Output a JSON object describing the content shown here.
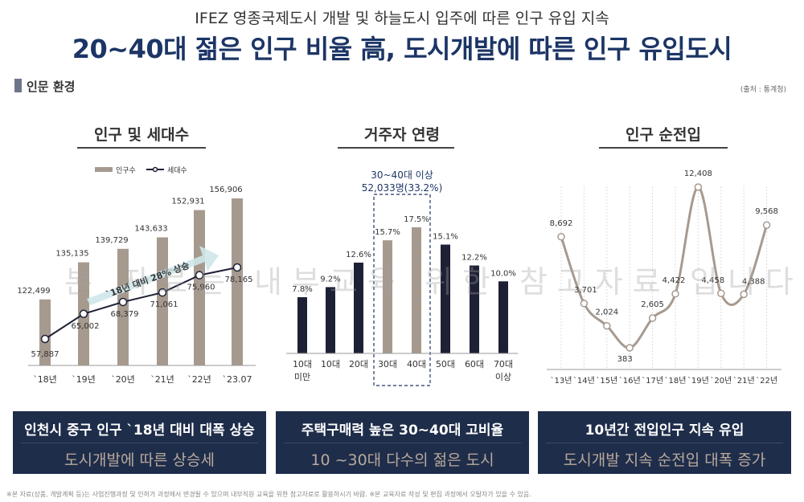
{
  "header": {
    "subtitle": "IFEZ 영종국제도시 개발 및 하늘도시 입주에 따른 인구 유입 지속",
    "title": "20~40대 젊은 인구 비율 高, 도시개발에 따른 인구 유입도시"
  },
  "section": {
    "label": "인문 환경",
    "source": "(출처 : 통계청)"
  },
  "panels": [
    {
      "title": "인구 및 세대수"
    },
    {
      "title": "거주자 연령"
    },
    {
      "title": "인구 순전입"
    }
  ],
  "summaries": [
    {
      "line1": "인천시 중구 인구 `18년 대비 대폭 상승",
      "line2": "도시개발에 따른 상승세"
    },
    {
      "line1": "주택구매력 높은 30~40대 고비율",
      "line2": "10 ~30대 다수의 젊은 도시"
    },
    {
      "line1": "10년간 전입인구 지속 유입",
      "line2": "도시개발 지속 순전입 대폭 증가"
    }
  ],
  "watermark": "본 자료는 내부교육 위한 참고자료 입니다",
  "footer": "※본 자료(상품, 개발계획 등)는 사업진행과정 및 인허가 과정에서 변경될 수 있으며 내부직원 교육을 위한 참고자료로 활용하시기 바람. ※본 교육자료 작성 및 편집 과정에서 오탈자가 있을 수 있음.",
  "colors": {
    "navy": "#1e2d4a",
    "taupe": "#a69a8f",
    "dark_bar": "#1e2035",
    "title_blue": "#1c3566"
  },
  "chart_data": [
    {
      "type": "bar",
      "categories": [
        "`18년",
        "`19년",
        "`20년",
        "`21년",
        "`22년",
        "`23.07"
      ],
      "series": [
        {
          "name": "인구수",
          "type": "bar",
          "values": [
            122499,
            135135,
            139729,
            143633,
            152931,
            156906
          ],
          "labels": [
            "122,499",
            "135,135",
            "139,729",
            "143,633",
            "152,931",
            "156,906"
          ]
        },
        {
          "name": "세대수",
          "type": "line",
          "values": [
            57887,
            65002,
            68379,
            71061,
            75960,
            78165
          ],
          "labels": [
            "57,887",
            "65,002",
            "68,379",
            "71,061",
            "75,960",
            "78,165"
          ]
        }
      ],
      "annotation": "`18년 대비 28% 상승",
      "legend": "top-left"
    },
    {
      "type": "bar",
      "categories": [
        "10대\n미만",
        "10대",
        "20대",
        "30대",
        "40대",
        "50대",
        "60대",
        "70대\n이상"
      ],
      "values": [
        7.8,
        9.2,
        12.6,
        15.7,
        17.5,
        15.1,
        12.2,
        10.0
      ],
      "labels": [
        "7.8%",
        "9.2%",
        "12.6%",
        "15.7%",
        "17.5%",
        "15.1%",
        "12.2%",
        "10.0%"
      ],
      "highlight": [
        "30대",
        "40대"
      ],
      "annotation": {
        "line1": "30~40대 이상",
        "line2": "52,033명(33.2%)"
      }
    },
    {
      "type": "line",
      "categories": [
        "`13년",
        "`14년",
        "`15년",
        "`16년",
        "`17년",
        "`18년",
        "`19년",
        "`20년",
        "`21년",
        "`22년"
      ],
      "values": [
        8692,
        3701,
        2024,
        383,
        2605,
        4422,
        12408,
        4458,
        4388,
        9568
      ],
      "labels": [
        "8,692",
        "3,701",
        "2,024",
        "383",
        "2,605",
        "4,422",
        "12,408",
        "4,458",
        "4,388",
        "9,568"
      ]
    }
  ]
}
